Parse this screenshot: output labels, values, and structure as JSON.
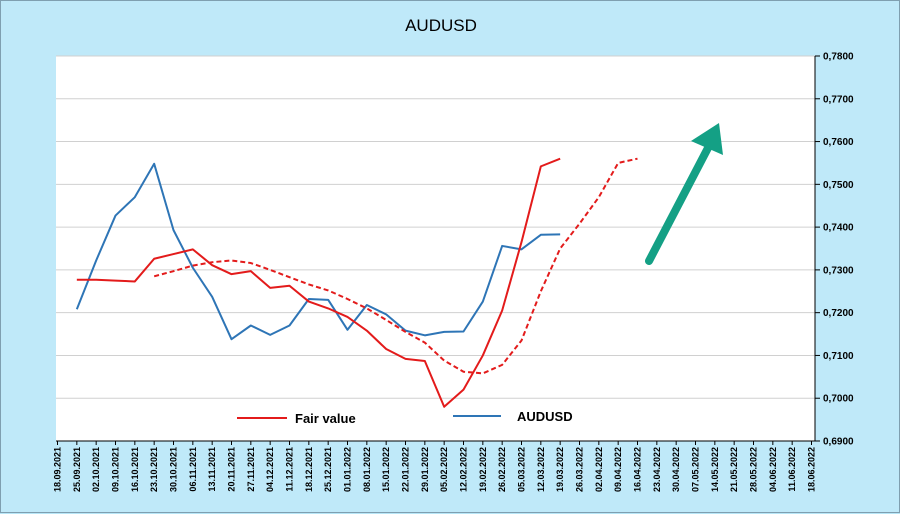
{
  "chart_data": {
    "type": "line",
    "title": "AUDUSD",
    "ylim": [
      0.69,
      0.78
    ],
    "y_ticks": [
      "0,6900",
      "0,7000",
      "0,7100",
      "0,7200",
      "0,7300",
      "0,7400",
      "0,7500",
      "0,7600",
      "0,7700",
      "0,7800"
    ],
    "y_axis_side": "right",
    "grid": "horizontal",
    "x_labels": [
      "18.09.2021",
      "25.09.2021",
      "02.10.2021",
      "09.10.2021",
      "16.10.2021",
      "23.10.2021",
      "30.10.2021",
      "06.11.2021",
      "13.11.2021",
      "20.11.2021",
      "27.11.2021",
      "04.12.2021",
      "11.12.2021",
      "18.12.2021",
      "25.12.2021",
      "01.01.2022",
      "08.01.2022",
      "15.01.2022",
      "22.01.2022",
      "29.01.2022",
      "05.02.2022",
      "12.02.2022",
      "19.02.2022",
      "26.02.2022",
      "05.03.2022",
      "12.03.2022",
      "19.03.2022",
      "26.03.2022",
      "02.04.2022",
      "09.04.2022",
      "16.04.2022",
      "23.04.2022",
      "30.04.2022",
      "07.05.2022",
      "14.05.2022",
      "21.05.2022",
      "28.05.2022",
      "04.06.2022",
      "11.06.2022",
      "18.06.2022"
    ],
    "series": [
      {
        "name": "AUDUSD",
        "color": "#2e75b6",
        "style": "solid",
        "points": [
          [
            "25.09.2021",
            0.7208
          ],
          [
            "02.10.2021",
            0.7322
          ],
          [
            "09.10.2021",
            0.7427
          ],
          [
            "16.10.2021",
            0.747
          ],
          [
            "23.10.2021",
            0.7548
          ],
          [
            "30.10.2021",
            0.7393
          ],
          [
            "06.11.2021",
            0.7305
          ],
          [
            "13.11.2021",
            0.7237
          ],
          [
            "20.11.2021",
            0.7138
          ],
          [
            "27.11.2021",
            0.717
          ],
          [
            "04.12.2021",
            0.7148
          ],
          [
            "11.12.2021",
            0.717
          ],
          [
            "18.12.2021",
            0.7232
          ],
          [
            "25.12.2021",
            0.723
          ],
          [
            "01.01.2022",
            0.716
          ],
          [
            "08.01.2022",
            0.7218
          ],
          [
            "15.01.2022",
            0.7196
          ],
          [
            "22.01.2022",
            0.7158
          ],
          [
            "29.01.2022",
            0.7147
          ],
          [
            "05.02.2022",
            0.7155
          ],
          [
            "12.02.2022",
            0.7156
          ],
          [
            "19.02.2022",
            0.7226
          ],
          [
            "26.02.2022",
            0.7356
          ],
          [
            "05.03.2022",
            0.7348
          ],
          [
            "12.03.2022",
            0.7382
          ],
          [
            "19.03.2022",
            0.7383
          ]
        ]
      },
      {
        "name": "Fair value",
        "color": "#e31b1b",
        "style": "solid",
        "points": [
          [
            "25.09.2021",
            0.7277
          ],
          [
            "02.10.2021",
            0.7277
          ],
          [
            "09.10.2021",
            0.7275
          ],
          [
            "16.10.2021",
            0.7273
          ],
          [
            "23.10.2021",
            0.7326
          ],
          [
            "30.10.2021",
            0.7337
          ],
          [
            "06.11.2021",
            0.7348
          ],
          [
            "13.11.2021",
            0.7311
          ],
          [
            "20.11.2021",
            0.729
          ],
          [
            "27.11.2021",
            0.7297
          ],
          [
            "04.12.2021",
            0.7258
          ],
          [
            "11.12.2021",
            0.7263
          ],
          [
            "18.12.2021",
            0.7226
          ],
          [
            "25.12.2021",
            0.721
          ],
          [
            "01.01.2022",
            0.719
          ],
          [
            "08.01.2022",
            0.7158
          ],
          [
            "15.01.2022",
            0.7115
          ],
          [
            "22.01.2022",
            0.7092
          ],
          [
            "29.01.2022",
            0.7087
          ],
          [
            "05.02.2022",
            0.698
          ],
          [
            "12.02.2022",
            0.702
          ],
          [
            "19.02.2022",
            0.71
          ],
          [
            "26.02.2022",
            0.7205
          ],
          [
            "05.03.2022",
            0.7365
          ],
          [
            "12.03.2022",
            0.7542
          ],
          [
            "19.03.2022",
            0.756
          ]
        ]
      },
      {
        "name": "",
        "color": "#e31b1b",
        "style": "dashed",
        "points": [
          [
            "23.10.2021",
            0.7285
          ],
          [
            "30.10.2021",
            0.7297
          ],
          [
            "06.11.2021",
            0.731
          ],
          [
            "13.11.2021",
            0.7318
          ],
          [
            "20.11.2021",
            0.7322
          ],
          [
            "27.11.2021",
            0.7316
          ],
          [
            "04.12.2021",
            0.73
          ],
          [
            "11.12.2021",
            0.7283
          ],
          [
            "18.12.2021",
            0.7266
          ],
          [
            "25.12.2021",
            0.7252
          ],
          [
            "01.01.2022",
            0.7232
          ],
          [
            "08.01.2022",
            0.721
          ],
          [
            "15.01.2022",
            0.7183
          ],
          [
            "22.01.2022",
            0.7155
          ],
          [
            "29.01.2022",
            0.713
          ],
          [
            "05.02.2022",
            0.7088
          ],
          [
            "12.02.2022",
            0.7062
          ],
          [
            "19.02.2022",
            0.7058
          ],
          [
            "26.02.2022",
            0.7078
          ],
          [
            "05.03.2022",
            0.7135
          ],
          [
            "12.03.2022",
            0.725
          ],
          [
            "19.03.2022",
            0.735
          ],
          [
            "26.03.2022",
            0.7408
          ],
          [
            "02.04.2022",
            0.747
          ],
          [
            "09.04.2022",
            0.755
          ],
          [
            "16.04.2022",
            0.756
          ]
        ]
      }
    ],
    "legend": [
      {
        "label": "Fair value",
        "color": "#e31b1b"
      },
      {
        "label": "AUDUSD",
        "color": "#2e75b6"
      }
    ],
    "annotations": [
      {
        "type": "arrow",
        "color": "#14a085",
        "direction": "up-right"
      }
    ]
  }
}
